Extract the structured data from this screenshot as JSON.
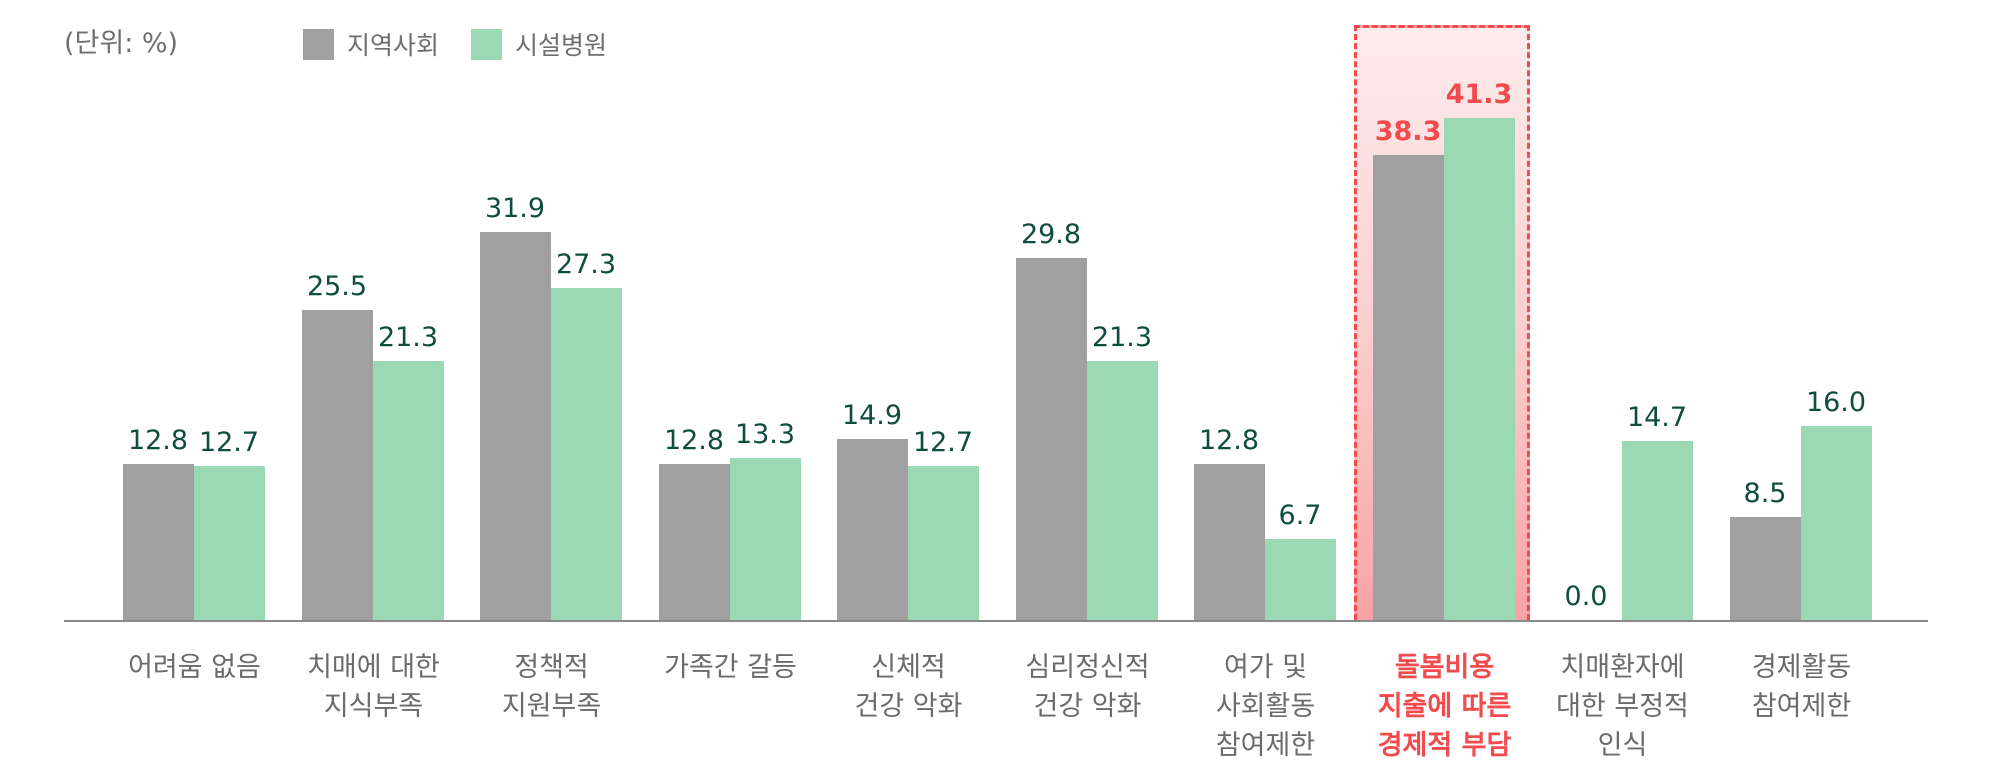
{
  "unit_label": "(단위: %)",
  "legend": [
    {
      "label": "지역사회",
      "color": "#a0a0a0"
    },
    {
      "label": "시설병원",
      "color": "#9ad9b4"
    }
  ],
  "colors": {
    "community": "#a0a0a0",
    "facility": "#9ad9b4",
    "value_label": "#0e4d3f",
    "highlight": "#f24a4d",
    "axis": "#8a8a8a",
    "category_label": "#6b6b6b"
  },
  "chart_data": {
    "type": "bar",
    "title": "",
    "unit": "%",
    "xlabel": "",
    "ylabel": "",
    "ylim": [
      0,
      45
    ],
    "grid": false,
    "legend_position": "top-left",
    "categories": [
      "어려움 없음",
      "치매에 대한\n지식부족",
      "정책적\n지원부족",
      "가족간 갈등",
      "신체적\n건강 악화",
      "심리정신적\n건강 악화",
      "여가 및\n사회활동\n참여제한",
      "돌봄비용\n지출에 따른\n경제적 부담",
      "치매환자에\n대한 부정적\n인식",
      "경제활동\n참여제한"
    ],
    "series": [
      {
        "name": "지역사회",
        "values": [
          12.8,
          25.5,
          31.9,
          12.8,
          14.9,
          29.8,
          12.8,
          38.3,
          0.0,
          8.5
        ]
      },
      {
        "name": "시설병원",
        "values": [
          12.7,
          21.3,
          27.3,
          13.3,
          12.7,
          21.3,
          6.7,
          41.3,
          14.7,
          16.0
        ]
      }
    ],
    "value_labels": [
      [
        "12.8",
        "12.7"
      ],
      [
        "25.5",
        "21.3"
      ],
      [
        "31.9",
        "27.3"
      ],
      [
        "12.8",
        "13.3"
      ],
      [
        "14.9",
        "12.7"
      ],
      [
        "29.8",
        "21.3"
      ],
      [
        "12.8",
        "6.7"
      ],
      [
        "38.3",
        "41.3"
      ],
      [
        "0.0",
        "14.7"
      ],
      [
        "8.5",
        "16.0"
      ]
    ],
    "highlighted_category_index": 7,
    "annotations": [
      "Category '돌봄비용 지출에 따른 경제적 부담' highlighted with red dashed box and red labels"
    ]
  }
}
